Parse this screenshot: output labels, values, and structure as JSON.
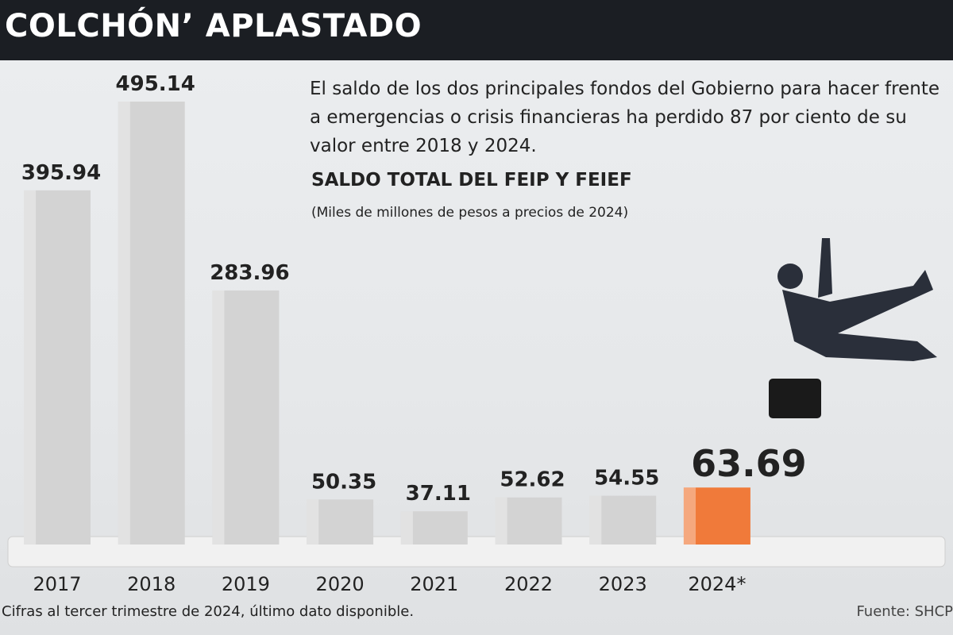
{
  "chart_data": {
    "type": "bar",
    "title": "COLCHÓN’ APLASTADO",
    "description": "El saldo de los dos principales fondos del Gobierno para hacer frente a emergencias o crisis financieras ha perdido 87 por ciento de su valor entre 2018 y 2024.",
    "subtitle": "SALDO TOTAL DEL FEIP Y FEIEF",
    "unit_note": "(Miles de millones de pesos a precios de 2024)",
    "categories": [
      "2017",
      "2018",
      "2019",
      "2020",
      "2021",
      "2022",
      "2023",
      "2024*"
    ],
    "values": [
      395.94,
      495.14,
      283.96,
      50.35,
      37.11,
      52.62,
      54.55,
      63.69
    ],
    "colors": [
      "#d3d3d3",
      "#d3d3d3",
      "#d3d3d3",
      "#d3d3d3",
      "#d3d3d3",
      "#d3d3d3",
      "#d3d3d3",
      "#f07a3a"
    ],
    "footnote": "Cifras al tercer trimestre de 2024, último dato disponible.",
    "source": "Fuente: SHCP"
  }
}
